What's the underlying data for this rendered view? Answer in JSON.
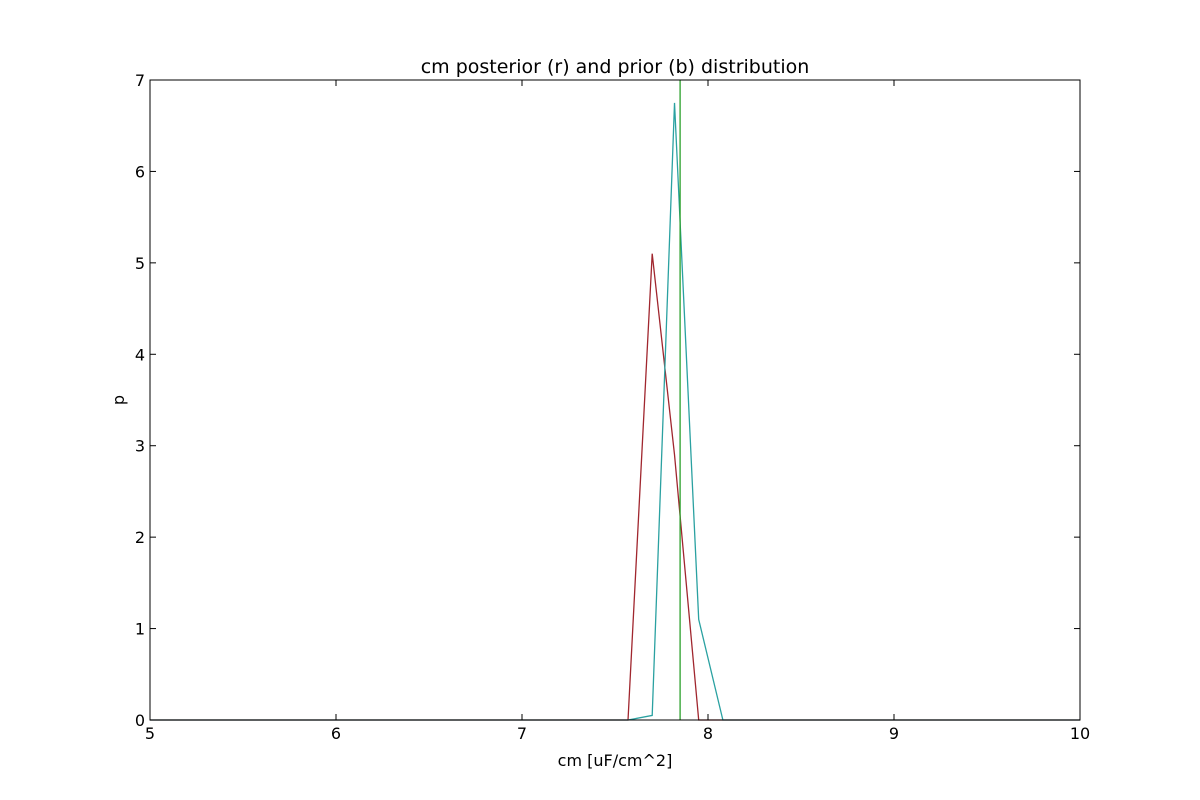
{
  "chart_data": {
    "type": "line",
    "title": "cm posterior (r) and prior (b) distribution",
    "xlabel": "cm [uF/cm^2]",
    "ylabel": "p",
    "xlim": [
      5,
      10
    ],
    "ylim": [
      0,
      7
    ],
    "xticks": [
      "5",
      "6",
      "7",
      "8",
      "9",
      "10"
    ],
    "yticks": [
      "0",
      "1",
      "2",
      "3",
      "4",
      "5",
      "6",
      "7"
    ],
    "grid": false,
    "legend": "none",
    "series": [
      {
        "color": "#a0262e",
        "x": [
          5.0,
          7.57,
          7.7,
          7.82,
          7.95,
          10.0
        ],
        "y": [
          0.0,
          0.0,
          5.1,
          2.9,
          0.0,
          0.0
        ]
      },
      {
        "color": "#2aa1a1",
        "x": [
          5.0,
          7.57,
          7.7,
          7.82,
          7.95,
          8.08,
          10.0
        ],
        "y": [
          0.0,
          0.0,
          0.05,
          6.75,
          1.1,
          0.0,
          0.0
        ]
      }
    ],
    "vlines": [
      {
        "x": 7.85,
        "color": "#2ca02c"
      }
    ]
  }
}
